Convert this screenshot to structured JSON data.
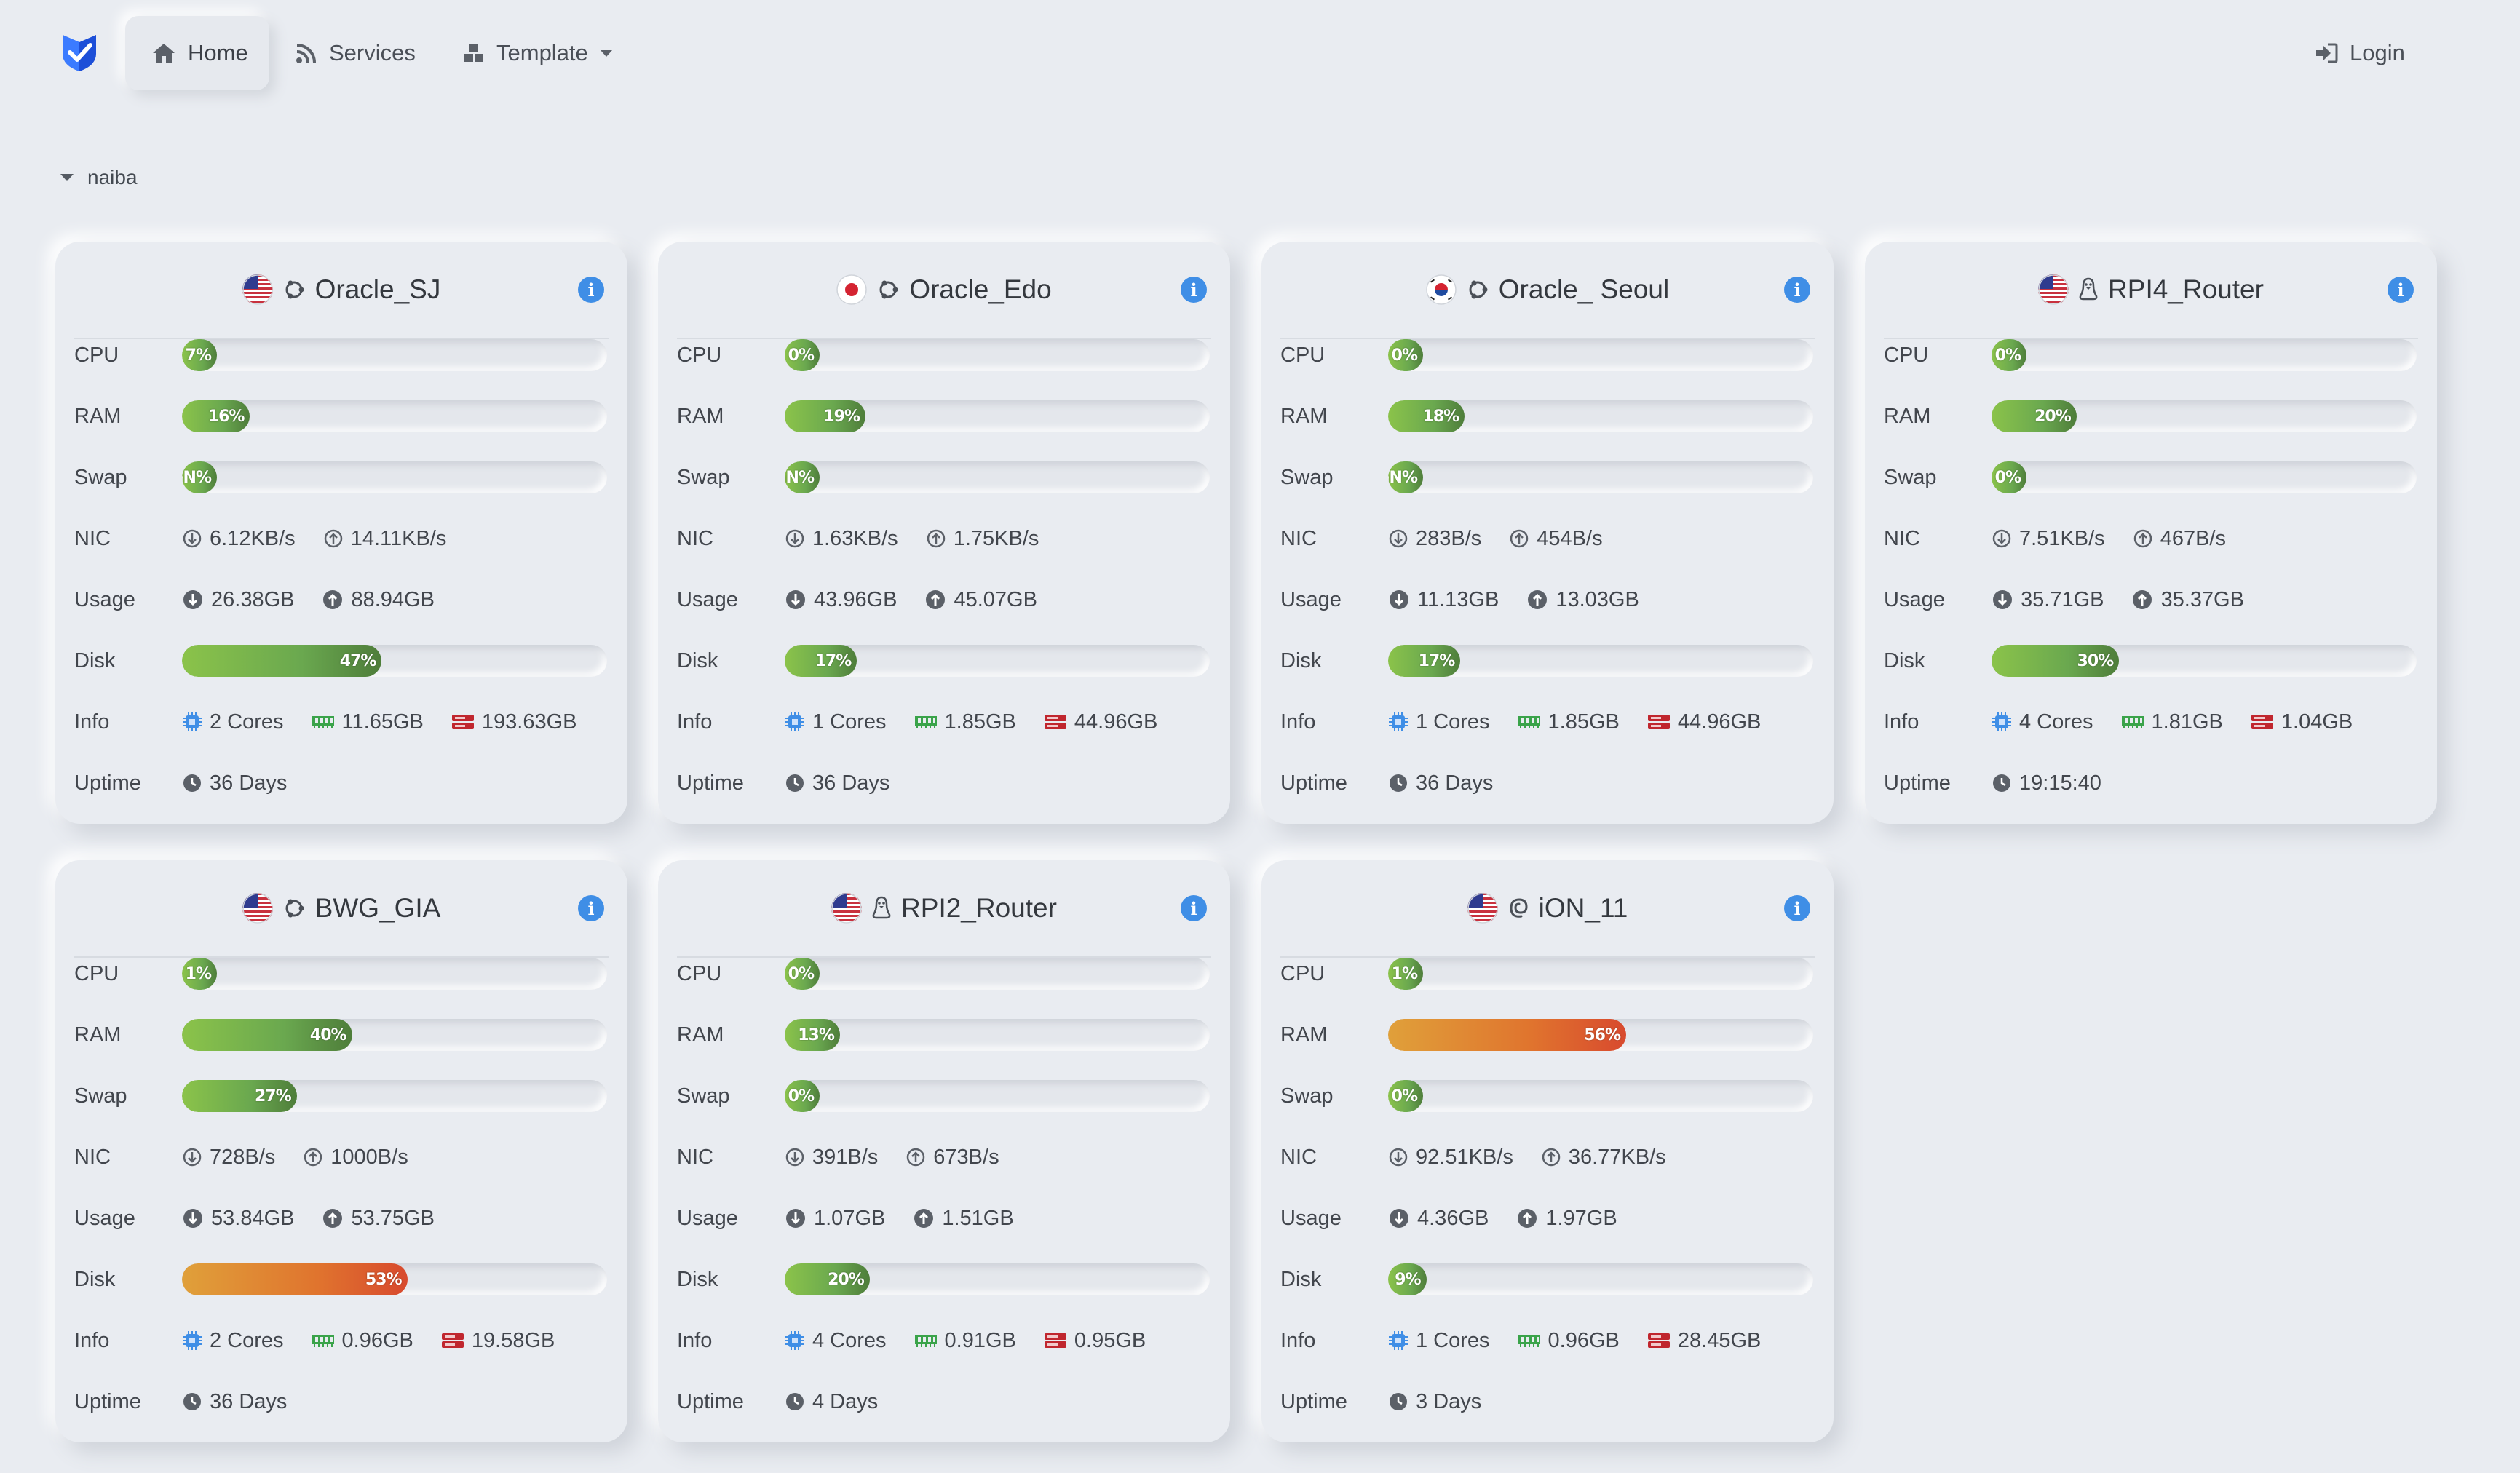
{
  "nav": {
    "logo_icon": "shield-check-icon",
    "items": [
      {
        "label": "Home",
        "icon": "home-icon",
        "active": true
      },
      {
        "label": "Services",
        "icon": "rss-icon",
        "active": false
      },
      {
        "label": "Template",
        "icon": "cubes-icon",
        "active": false,
        "dropdown": true
      }
    ],
    "login": {
      "label": "Login",
      "icon": "sign-in-icon"
    }
  },
  "group": {
    "name": "naiba",
    "icon": "caret-down-icon"
  },
  "labels": {
    "cpu": "CPU",
    "ram": "RAM",
    "swap": "Swap",
    "nic": "NIC",
    "usage": "Usage",
    "disk": "Disk",
    "info": "Info",
    "uptime": "Uptime"
  },
  "colors": {
    "accent": "#3f8ee6",
    "bar_ok": "#6aa84f",
    "bar_warn": "#e0742e",
    "background": "#e9ecf1"
  },
  "servers": [
    {
      "name": "Oracle_SJ",
      "flag": "us",
      "os": "ubuntu",
      "cpu": {
        "pct": 7,
        "text": "7%"
      },
      "ram": {
        "pct": 16,
        "text": "16%"
      },
      "swap": {
        "pct": 0,
        "text": "NaN%"
      },
      "nic": {
        "down": "6.12KB/s",
        "up": "14.11KB/s"
      },
      "usage": {
        "down": "26.38GB",
        "up": "88.94GB"
      },
      "disk": {
        "pct": 47,
        "text": "47%"
      },
      "info": {
        "cores": "2 Cores",
        "mem": "11.65GB",
        "disk": "193.63GB"
      },
      "uptime": "36 Days"
    },
    {
      "name": "Oracle_Edo",
      "flag": "jp",
      "os": "ubuntu",
      "cpu": {
        "pct": 0,
        "text": "0%"
      },
      "ram": {
        "pct": 19,
        "text": "19%"
      },
      "swap": {
        "pct": 0,
        "text": "NaN%"
      },
      "nic": {
        "down": "1.63KB/s",
        "up": "1.75KB/s"
      },
      "usage": {
        "down": "43.96GB",
        "up": "45.07GB"
      },
      "disk": {
        "pct": 17,
        "text": "17%"
      },
      "info": {
        "cores": "1 Cores",
        "mem": "1.85GB",
        "disk": "44.96GB"
      },
      "uptime": "36 Days"
    },
    {
      "name": "Oracle_ Seoul",
      "flag": "kr",
      "os": "ubuntu",
      "cpu": {
        "pct": 0,
        "text": "0%"
      },
      "ram": {
        "pct": 18,
        "text": "18%"
      },
      "swap": {
        "pct": 0,
        "text": "NaN%"
      },
      "nic": {
        "down": "283B/s",
        "up": "454B/s"
      },
      "usage": {
        "down": "11.13GB",
        "up": "13.03GB"
      },
      "disk": {
        "pct": 17,
        "text": "17%"
      },
      "info": {
        "cores": "1 Cores",
        "mem": "1.85GB",
        "disk": "44.96GB"
      },
      "uptime": "36 Days"
    },
    {
      "name": "RPI4_Router",
      "flag": "us",
      "os": "linux",
      "cpu": {
        "pct": 0,
        "text": "0%"
      },
      "ram": {
        "pct": 20,
        "text": "20%"
      },
      "swap": {
        "pct": 0,
        "text": "0%"
      },
      "nic": {
        "down": "7.51KB/s",
        "up": "467B/s"
      },
      "usage": {
        "down": "35.71GB",
        "up": "35.37GB"
      },
      "disk": {
        "pct": 30,
        "text": "30%"
      },
      "info": {
        "cores": "4 Cores",
        "mem": "1.81GB",
        "disk": "1.04GB"
      },
      "uptime": "19:15:40"
    },
    {
      "name": "BWG_GIA",
      "flag": "us",
      "os": "ubuntu",
      "cpu": {
        "pct": 1,
        "text": "1%"
      },
      "ram": {
        "pct": 40,
        "text": "40%"
      },
      "swap": {
        "pct": 27,
        "text": "27%"
      },
      "nic": {
        "down": "728B/s",
        "up": "1000B/s"
      },
      "usage": {
        "down": "53.84GB",
        "up": "53.75GB"
      },
      "disk": {
        "pct": 53,
        "text": "53%",
        "warn": true
      },
      "info": {
        "cores": "2 Cores",
        "mem": "0.96GB",
        "disk": "19.58GB"
      },
      "uptime": "36 Days"
    },
    {
      "name": "RPI2_Router",
      "flag": "us",
      "os": "linux",
      "cpu": {
        "pct": 0,
        "text": "0%"
      },
      "ram": {
        "pct": 13,
        "text": "13%"
      },
      "swap": {
        "pct": 0,
        "text": "0%"
      },
      "nic": {
        "down": "391B/s",
        "up": "673B/s"
      },
      "usage": {
        "down": "1.07GB",
        "up": "1.51GB"
      },
      "disk": {
        "pct": 20,
        "text": "20%"
      },
      "info": {
        "cores": "4 Cores",
        "mem": "0.91GB",
        "disk": "0.95GB"
      },
      "uptime": "4 Days"
    },
    {
      "name": "iON_11",
      "flag": "us",
      "os": "debian",
      "cpu": {
        "pct": 1,
        "text": "1%"
      },
      "ram": {
        "pct": 56,
        "text": "56%",
        "warn": true
      },
      "swap": {
        "pct": 0,
        "text": "0%"
      },
      "nic": {
        "down": "92.51KB/s",
        "up": "36.77KB/s"
      },
      "usage": {
        "down": "4.36GB",
        "up": "1.97GB"
      },
      "disk": {
        "pct": 9,
        "text": "9%"
      },
      "info": {
        "cores": "1 Cores",
        "mem": "0.96GB",
        "disk": "28.45GB"
      },
      "uptime": "3 Days"
    }
  ]
}
